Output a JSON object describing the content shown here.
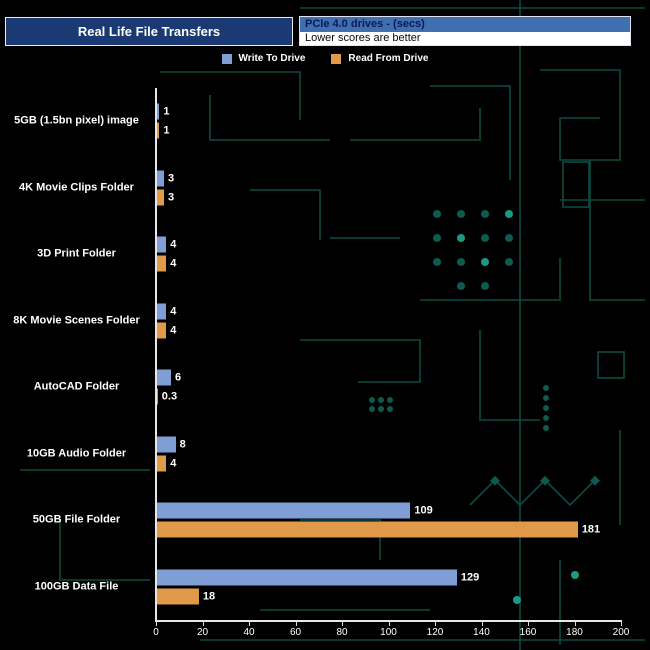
{
  "header": {
    "title": "Real Life File Transfers",
    "info_line1": "PCIe 4.0 drives - (secs)",
    "info_line2": "Lower scores are better"
  },
  "legend": [
    {
      "label": "Write To Drive",
      "color": "#7f9ed6"
    },
    {
      "label": "Read From Drive",
      "color": "#e09a4a"
    }
  ],
  "colors": {
    "background": "#000000",
    "bar_write": "#7f9ed6",
    "bar_read": "#e09a4a",
    "axis": "#e6e6e6",
    "circuit_trace": "#0d5a4f",
    "title_bg": "#1b3a74",
    "info_bg": "#3f6fae"
  },
  "chart_data": {
    "type": "bar",
    "orientation": "horizontal",
    "title": "Real Life File Transfers",
    "subtitle": "PCIe 4.0 drives - (secs)",
    "note": "Lower scores are better",
    "categories": [
      "5GB (1.5bn pixel) image",
      "4K Movie Clips Folder",
      "3D Print Folder",
      "8K Movie Scenes Folder",
      "AutoCAD Folder",
      "10GB Audio Folder",
      "50GB File Folder",
      "100GB Data File"
    ],
    "series": [
      {
        "name": "Write To Drive",
        "color": "#7f9ed6",
        "values": [
          1,
          3,
          4,
          4,
          6,
          8,
          109,
          129
        ]
      },
      {
        "name": "Read From Drive",
        "color": "#e09a4a",
        "values": [
          1,
          3,
          4,
          4,
          0.3,
          4,
          181,
          18
        ]
      }
    ],
    "xlim": [
      0,
      200
    ],
    "xticks": [
      0,
      20,
      40,
      60,
      80,
      100,
      120,
      140,
      160,
      180,
      200
    ],
    "legend_position": "top",
    "grid": false
  }
}
